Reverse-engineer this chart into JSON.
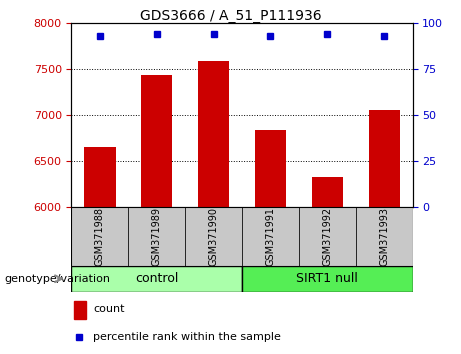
{
  "title": "GDS3666 / A_51_P111936",
  "samples": [
    "GSM371988",
    "GSM371989",
    "GSM371990",
    "GSM371991",
    "GSM371992",
    "GSM371993"
  ],
  "counts": [
    6650,
    7440,
    7590,
    6840,
    6330,
    7050
  ],
  "percentile_ranks": [
    93,
    94,
    94,
    93,
    94,
    93
  ],
  "ylim_left": [
    6000,
    8000
  ],
  "ylim_right": [
    0,
    100
  ],
  "yticks_left": [
    6000,
    6500,
    7000,
    7500,
    8000
  ],
  "yticks_right": [
    0,
    25,
    50,
    75,
    100
  ],
  "bar_color": "#cc0000",
  "dot_color": "#0000cc",
  "bar_width": 0.55,
  "group_control_label": "control",
  "group_sirt_label": "SIRT1 null",
  "group_control_color": "#aaffaa",
  "group_sirt_color": "#55ee55",
  "genotype_label": "genotype/variation",
  "legend_count_label": "count",
  "legend_percentile_label": "percentile rank within the sample",
  "tick_label_color_left": "#cc0000",
  "tick_label_color_right": "#0000cc",
  "sample_box_color": "#c8c8c8",
  "title_fontsize": 10,
  "tick_fontsize": 8,
  "sample_fontsize": 7,
  "group_fontsize": 9,
  "legend_fontsize": 8,
  "genotype_fontsize": 8
}
